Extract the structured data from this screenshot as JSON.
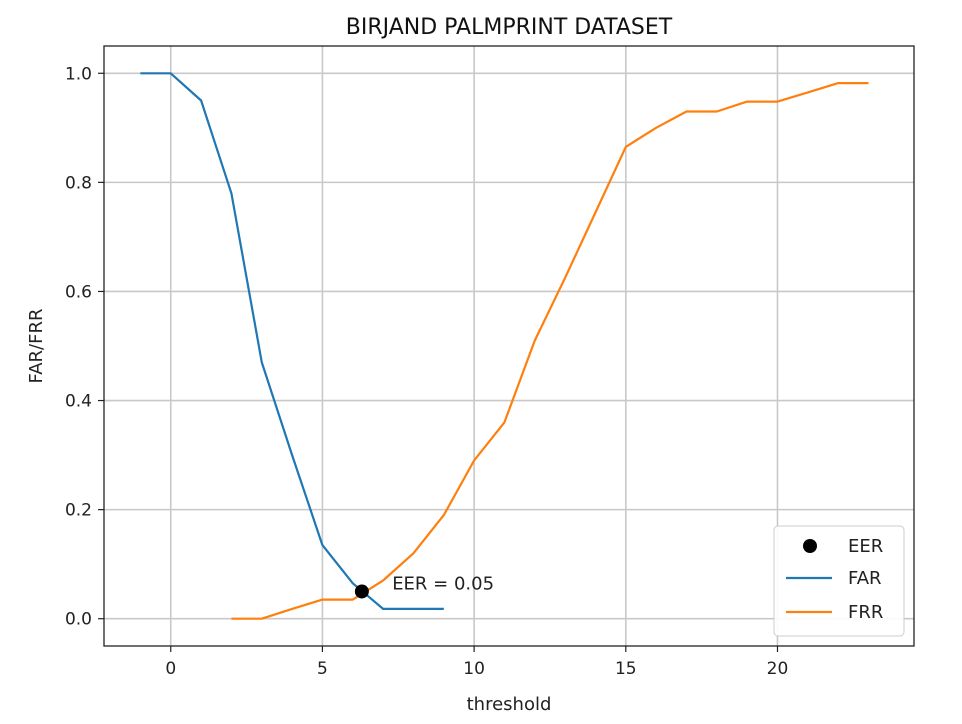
{
  "chart_data": {
    "type": "line",
    "title": "BIRJAND PALMPRINT DATASET",
    "xlabel": "threshold",
    "ylabel": "FAR/FRR",
    "xlim": [
      -2.2,
      24.5
    ],
    "ylim": [
      -0.05,
      1.05
    ],
    "xticks": [
      0,
      5,
      10,
      15,
      20
    ],
    "yticks": [
      0.0,
      0.2,
      0.4,
      0.6,
      0.8,
      1.0
    ],
    "xtick_labels": [
      "0",
      "5",
      "10",
      "15",
      "20"
    ],
    "ytick_labels": [
      "0.0",
      "0.2",
      "0.4",
      "0.6",
      "0.8",
      "1.0"
    ],
    "grid": true,
    "legend_position": "bottom-right",
    "series": [
      {
        "name": "FAR",
        "color": "#1f77b4",
        "x": [
          -1,
          0,
          1,
          2,
          3,
          4,
          5,
          6,
          7,
          8,
          9
        ],
        "y": [
          1.0,
          1.0,
          0.95,
          0.78,
          0.47,
          0.3,
          0.135,
          0.065,
          0.018,
          0.018,
          0.018
        ]
      },
      {
        "name": "FRR",
        "color": "#ff7f0e",
        "x": [
          2,
          3,
          4,
          5,
          6,
          7,
          8,
          9,
          10,
          11,
          12,
          13,
          14,
          15,
          16,
          17,
          18,
          19,
          20,
          21,
          22,
          23
        ],
        "y": [
          0.0,
          0.0,
          0.018,
          0.035,
          0.035,
          0.07,
          0.12,
          0.19,
          0.29,
          0.36,
          0.51,
          0.625,
          0.745,
          0.865,
          0.9,
          0.93,
          0.93,
          0.948,
          0.948,
          0.965,
          0.982,
          0.982
        ]
      }
    ],
    "eer_point": {
      "name": "EER",
      "x": 6.3,
      "y": 0.05,
      "color": "#000000"
    },
    "annotation": {
      "text": "EER = 0.05",
      "x": 7.3,
      "y": 0.05
    }
  }
}
